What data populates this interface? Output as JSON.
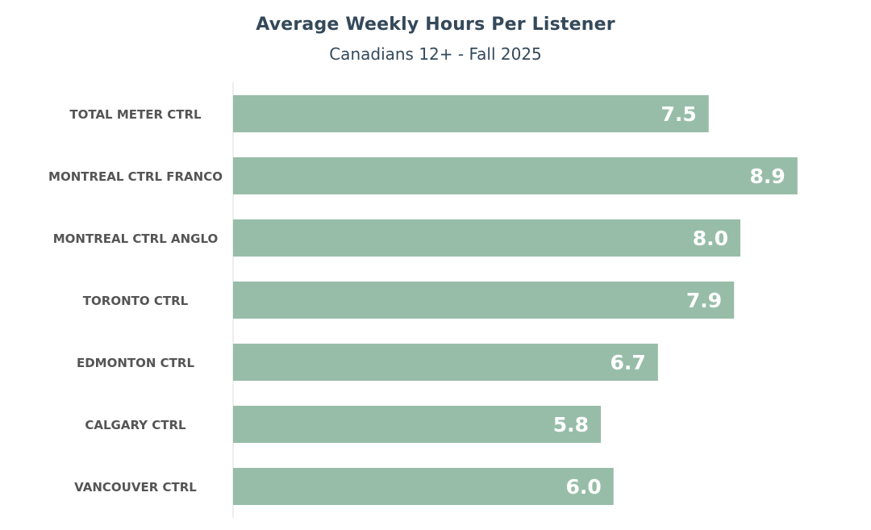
{
  "chart_data": {
    "type": "bar",
    "orientation": "horizontal",
    "title": "Average Weekly Hours Per Listener",
    "subtitle": "Canadians 12+ - Fall 2025",
    "categories": [
      "TOTAL METER CTRL",
      "MONTREAL CTRL FRANCO",
      "MONTREAL CTRL ANGLO",
      "TORONTO CTRL",
      "EDMONTON CTRL",
      "CALGARY CTRL",
      "VANCOUVER CTRL"
    ],
    "values": [
      7.5,
      8.9,
      8.0,
      7.9,
      6.7,
      5.8,
      6.0
    ],
    "value_labels": [
      "7.5",
      "8.9",
      "8.0",
      "7.9",
      "6.7",
      "5.8",
      "6.0"
    ],
    "xlim": [
      0,
      9.5
    ],
    "grid": false,
    "legend": "none",
    "colors": {
      "bar": "#97bda8",
      "value_label": "#ffffff",
      "category_label": "#555555",
      "title": "#34495a",
      "axis": "#dddddd"
    }
  }
}
